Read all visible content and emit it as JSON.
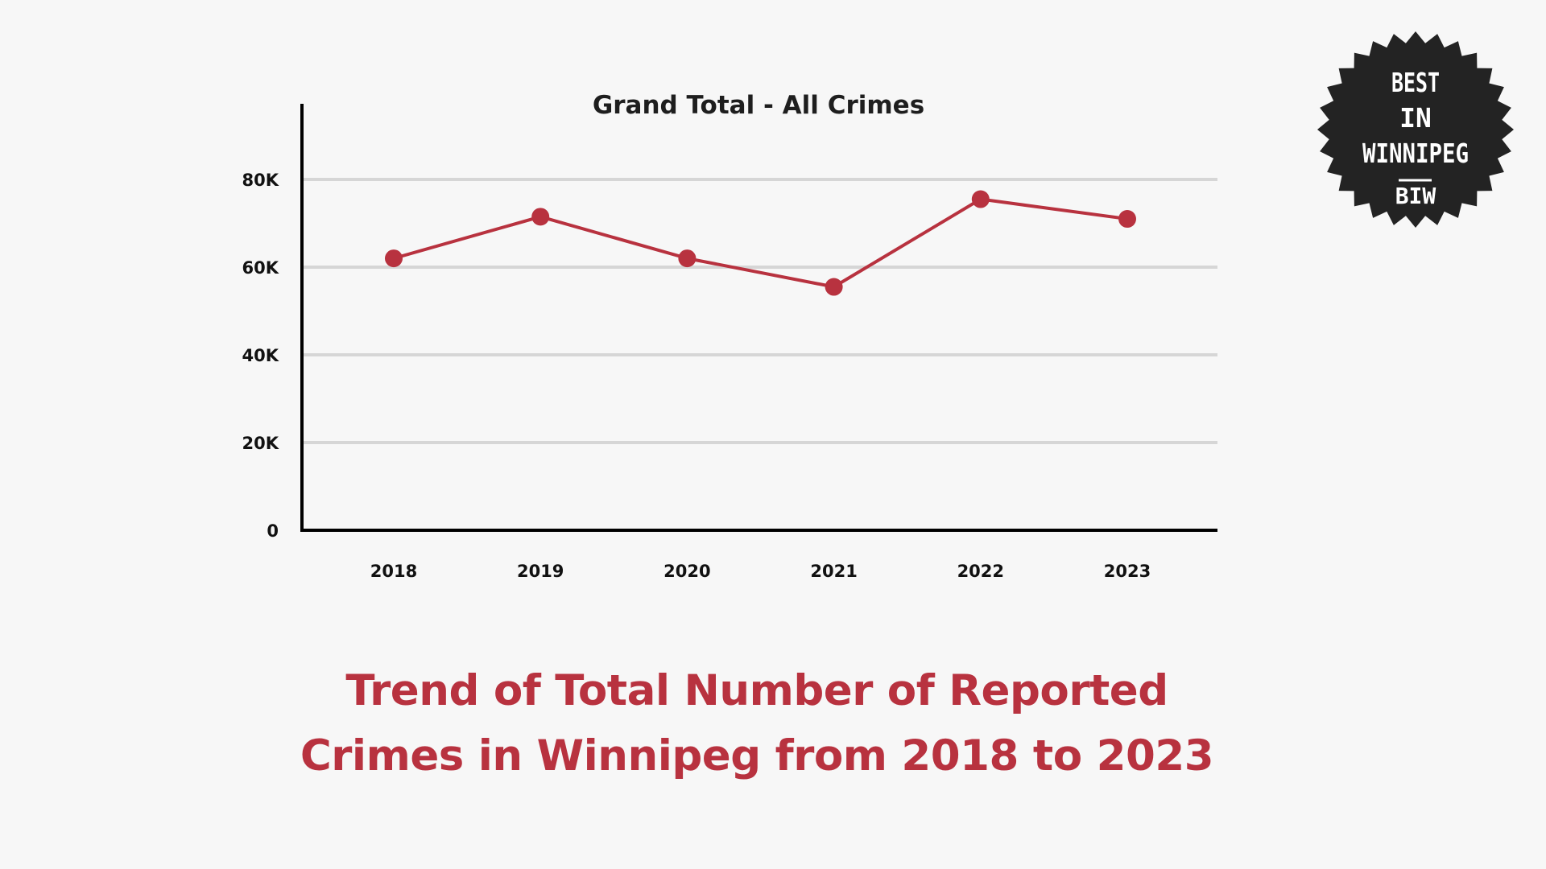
{
  "chart_data": {
    "type": "line",
    "title": "Grand Total - All Crimes",
    "categories": [
      "2018",
      "2019",
      "2020",
      "2021",
      "2022",
      "2023"
    ],
    "series": [
      {
        "values": [
          62000,
          71500,
          62000,
          55500,
          75500,
          71000
        ]
      }
    ],
    "ylim": [
      0,
      90000
    ],
    "yticks": [
      0,
      20000,
      40000,
      60000,
      80000
    ],
    "ytick_labels": [
      "0",
      "20K",
      "40K",
      "60K",
      "80K"
    ],
    "grid": true,
    "line_color": "#b8323f",
    "grid_color": "#d6d6d6"
  },
  "caption": {
    "line1": "Trend of Total Number of Reported",
    "line2": "Crimes in Winnipeg from 2018 to 2023"
  },
  "badge": {
    "line1": "BEST",
    "line2": "IN",
    "line3": "WINNIPEG",
    "line4": "BIW",
    "color": "#232323"
  }
}
